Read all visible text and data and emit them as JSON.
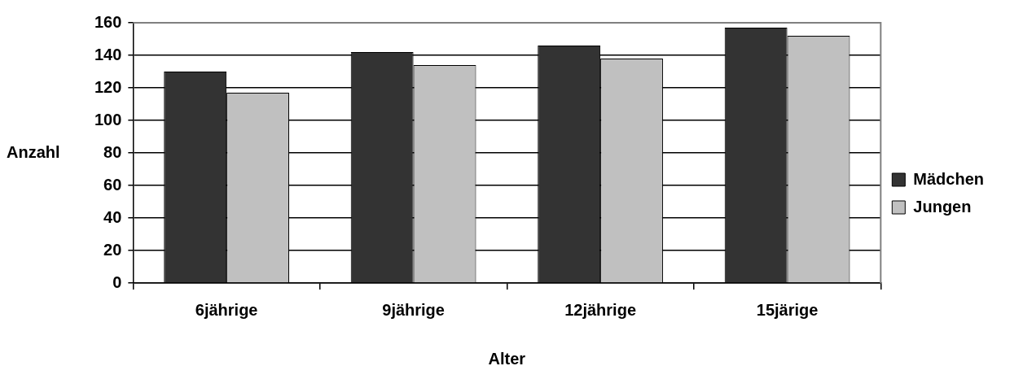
{
  "chart_data": {
    "type": "bar",
    "xlabel": "Alter",
    "ylabel": "Anzahl",
    "categories": [
      "6jährige",
      "9jährige",
      "12jährige",
      "15järige"
    ],
    "series": [
      {
        "name": "Mädchen",
        "color": "#333333",
        "values": [
          130,
          142,
          146,
          157
        ]
      },
      {
        "name": "Jungen",
        "color": "#c0c0c0",
        "values": [
          117,
          134,
          138,
          152
        ]
      }
    ],
    "ylim": [
      0,
      160
    ],
    "yticks": [
      0,
      20,
      40,
      60,
      80,
      100,
      120,
      140,
      160
    ],
    "grid": "y",
    "legend": "right"
  }
}
